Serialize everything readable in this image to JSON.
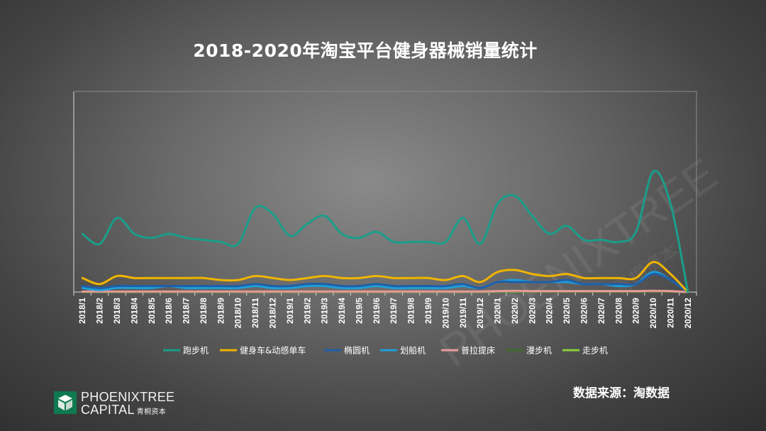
{
  "page": {
    "title": "2018-2020年淘宝平台健身器械销量统计",
    "source": "数据来源：淘数据"
  },
  "logo": {
    "line1": "PHOENIXTREE",
    "line2": "CAPITAL",
    "cn": "青桐资本"
  },
  "watermark": {
    "text": "PHOENIXTREE",
    "cn": "青桐资本"
  },
  "colors": {
    "background": "#5a5a5a",
    "axis": "#d9d9d9",
    "brand": "#0f7a52"
  },
  "chart_data": {
    "type": "line",
    "title": "2018-2020年淘宝平台健身器械销量统计",
    "xlabel": "",
    "ylabel": "",
    "ylim": [
      0,
      100
    ],
    "grid": false,
    "legend": "bottom",
    "categories": [
      "2018/1",
      "2018/2",
      "2018/3",
      "2018/4",
      "2018/5",
      "2018/6",
      "2018/7",
      "2018/8",
      "2018/9",
      "2018/10",
      "2018/11",
      "2018/12",
      "2019/1",
      "2019/2",
      "2019/3",
      "2019/4",
      "2019/5",
      "2019/6",
      "2019/7",
      "2019/8",
      "2019/9",
      "2019/10",
      "2019/11",
      "2019/12",
      "2020/1",
      "2020/2",
      "2020/3",
      "2020/4",
      "2020/5",
      "2020/6",
      "2020/7",
      "2020/8",
      "2020/9",
      "2020/10",
      "2020/11",
      "2020/12"
    ],
    "series": [
      {
        "name": "跑步机",
        "color": "#1a9e8a",
        "values": [
          29,
          24,
          37,
          29,
          27,
          29,
          27,
          26,
          25,
          24,
          42,
          39,
          28,
          34,
          38,
          29,
          27,
          30,
          25,
          25,
          25,
          25,
          37,
          24,
          44,
          48,
          38,
          29,
          33,
          26,
          26,
          25,
          30,
          60,
          44,
          0
        ]
      },
      {
        "name": "健身车&动感单车",
        "color": "#f0b400",
        "values": [
          7,
          4,
          8,
          7,
          7,
          7,
          7,
          7,
          6,
          6,
          8,
          7,
          6,
          7,
          8,
          7,
          7,
          8,
          7,
          7,
          7,
          6,
          8,
          5,
          10,
          11,
          9,
          8,
          9,
          7,
          7,
          7,
          7,
          15,
          9,
          0
        ]
      },
      {
        "name": "椭圆机",
        "color": "#1f5fa8",
        "values": [
          3,
          2,
          3,
          3,
          3,
          3,
          3,
          3,
          3,
          3,
          4,
          3,
          3,
          4,
          4,
          3,
          3,
          4,
          3,
          3,
          3,
          3,
          4,
          2,
          5,
          5,
          5,
          5,
          6,
          4,
          4,
          4,
          4,
          9,
          6,
          0
        ]
      },
      {
        "name": "划船机",
        "color": "#1f9fd8",
        "values": [
          2,
          1,
          2,
          2,
          2,
          3,
          2,
          2,
          2,
          2,
          3,
          2,
          2,
          3,
          3,
          2,
          2,
          3,
          2,
          2,
          2,
          2,
          3,
          2,
          5,
          6,
          5,
          5,
          5,
          4,
          4,
          3,
          4,
          10,
          6,
          0
        ]
      },
      {
        "name": "普拉提床",
        "color": "#e89a9a",
        "values": [
          0.3,
          0.3,
          0.3,
          0.3,
          0.3,
          0.3,
          0.3,
          0.3,
          0.3,
          0.3,
          0.3,
          0.3,
          0.3,
          0.3,
          0.3,
          0.3,
          0.3,
          0.3,
          0.3,
          0.3,
          0.3,
          0.3,
          0.3,
          0.3,
          0.5,
          0.6,
          0.5,
          0.5,
          0.5,
          0.5,
          0.5,
          0.5,
          0.5,
          0.6,
          0.5,
          0
        ]
      },
      {
        "name": "漫步机",
        "color": "#3f6a2c",
        "values": [
          0.2,
          0.2,
          0.2,
          0.2,
          0.2,
          0.2,
          0.2,
          0.2,
          0.2,
          0.2,
          0.2,
          0.2,
          0.2,
          0.2,
          0.2,
          0.2,
          0.2,
          0.2,
          0.2,
          0.2,
          0.2,
          0.2,
          0.2,
          0.2,
          0.4,
          0.5,
          0.4,
          0.4,
          0.4,
          0.4,
          0.4,
          0.4,
          0.4,
          0.5,
          0.4,
          0
        ]
      },
      {
        "name": "走步机",
        "color": "#8ccf3c",
        "values": [
          0.1,
          0.1,
          0.1,
          0.1,
          0.1,
          0.1,
          0.1,
          0.1,
          0.1,
          0.1,
          0.1,
          0.1,
          0.1,
          0.1,
          0.1,
          0.1,
          0.1,
          0.1,
          0.1,
          0.1,
          0.1,
          0.1,
          0.1,
          0.1,
          0.2,
          0.3,
          0.3,
          0.3,
          0.3,
          0.3,
          0.3,
          0.3,
          0.3,
          0.4,
          0.3,
          0
        ]
      }
    ]
  }
}
